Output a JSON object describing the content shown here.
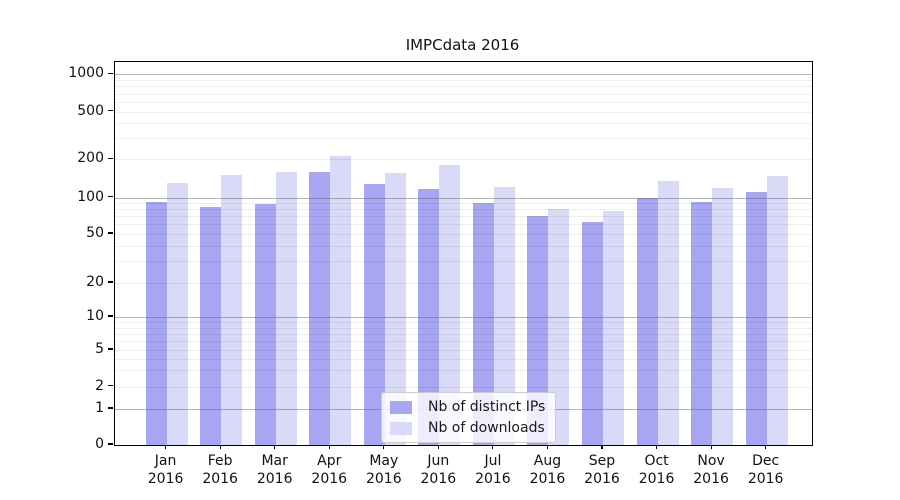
{
  "chart_data": {
    "type": "bar",
    "title": "IMPCdata 2016",
    "year": "2016",
    "categories": [
      "Jan",
      "Feb",
      "Mar",
      "Apr",
      "May",
      "Jun",
      "Jul",
      "Aug",
      "Sep",
      "Oct",
      "Nov",
      "Dec"
    ],
    "series": [
      {
        "name": "Nb of distinct IPs",
        "color": "#a6a6f2",
        "values": [
          92,
          84,
          89,
          158,
          128,
          118,
          90,
          70,
          63,
          100,
          93,
          110
        ]
      },
      {
        "name": "Nb of downloads",
        "color": "#d9d9f8",
        "values": [
          130,
          150,
          160,
          215,
          157,
          180,
          122,
          80,
          77,
          135,
          120,
          147
        ]
      }
    ],
    "yscale": "symlog (log above 1, linear 0-1)",
    "yticks": [
      0,
      1,
      2,
      5,
      10,
      20,
      50,
      100,
      200,
      500,
      1000
    ],
    "major_yticks": [
      1,
      10,
      100,
      1000
    ],
    "ylim": [
      0,
      1300
    ],
    "grid": "on",
    "legend_position": "lower center"
  }
}
